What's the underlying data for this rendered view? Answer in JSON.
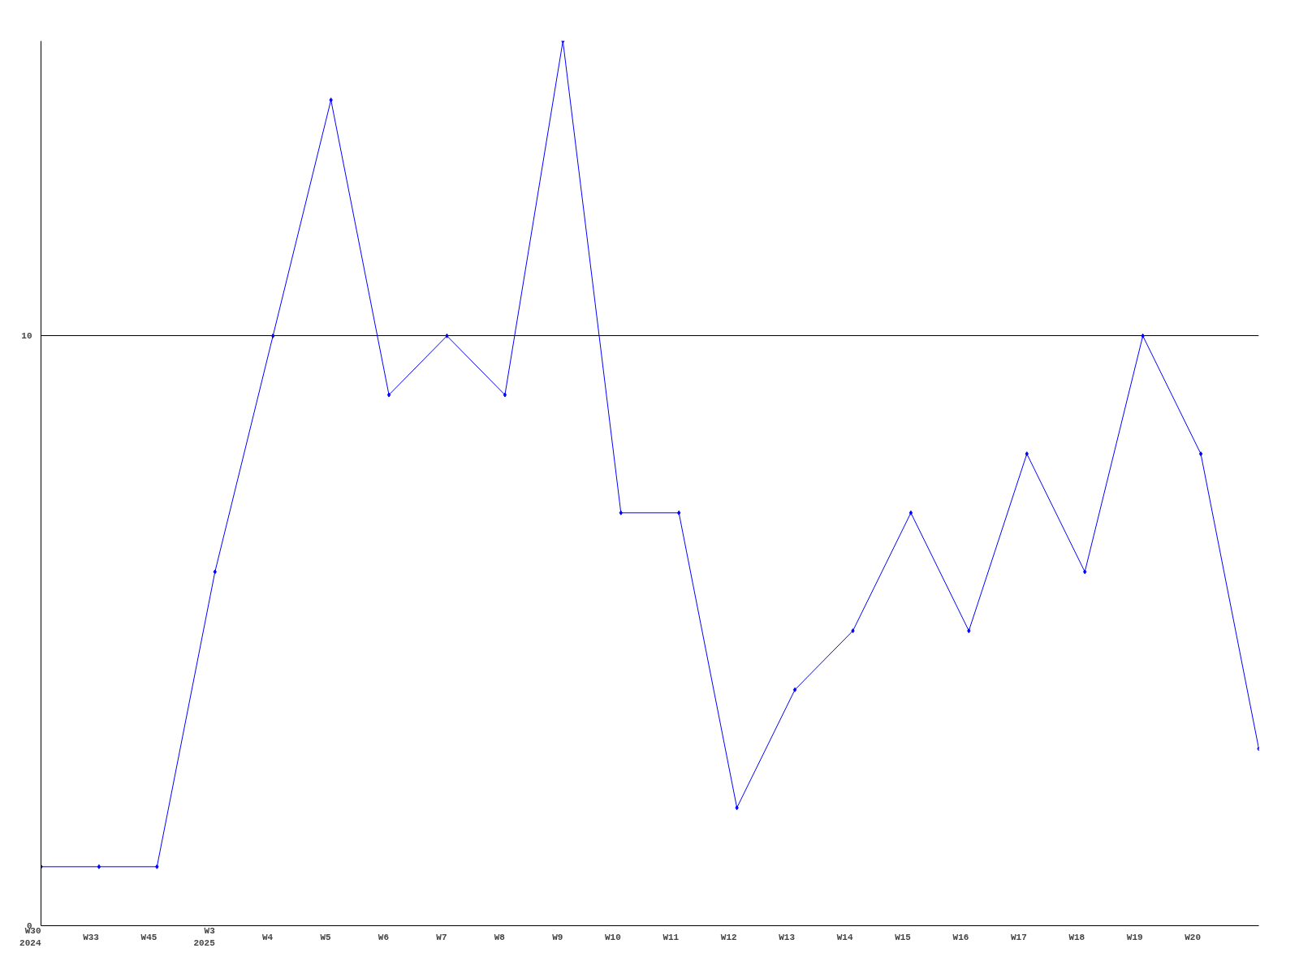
{
  "chart_data": {
    "type": "line",
    "categories": [
      "W30\n2024",
      "W33",
      "W45",
      "W3\n2025",
      "W4",
      "W5",
      "W6",
      "W7",
      "W8",
      "W9",
      "W10",
      "W11",
      "W12",
      "W13",
      "W14",
      "W15",
      "W16",
      "W17",
      "W18",
      "W19",
      "W20",
      null
    ],
    "series": [
      {
        "color": "#0000ff",
        "values": [
          1,
          1,
          1,
          6,
          10,
          14,
          9,
          10,
          9,
          15,
          7,
          7,
          2,
          4,
          5,
          7,
          5,
          8,
          6,
          10,
          8,
          3
        ]
      }
    ],
    "ylim": [
      0,
      15
    ],
    "yticks": [
      0,
      10
    ],
    "grid": "y",
    "marker": "diamond",
    "line_style": "solid"
  }
}
